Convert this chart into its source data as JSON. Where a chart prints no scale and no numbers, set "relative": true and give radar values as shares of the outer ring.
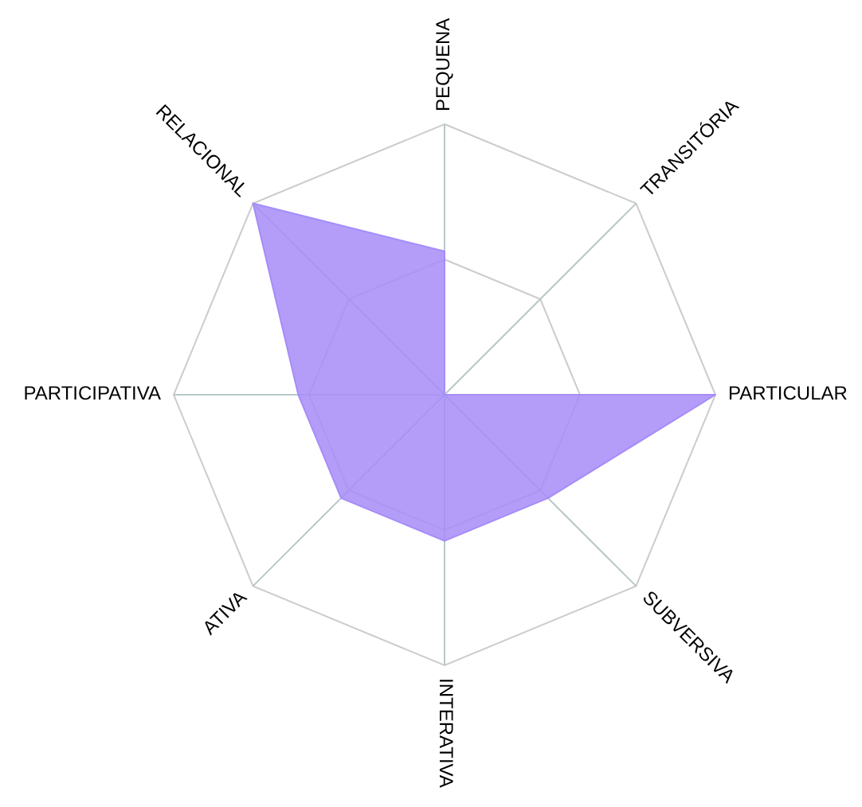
{
  "chart_data": {
    "type": "radar",
    "relative": true,
    "categories": [
      "PEQUENA",
      "TRANSITÓRIA",
      "PARTICULAR",
      "SUBVERSIVA",
      "INTERATIVA",
      "ATIVA",
      "PARTICIPATIVA",
      "RELACIONAL"
    ],
    "series": [
      {
        "color": "#a68cf8",
        "values": [
          0.53,
          0,
          1,
          0.54,
          0.54,
          0.54,
          0.54,
          1
        ]
      }
    ]
  }
}
